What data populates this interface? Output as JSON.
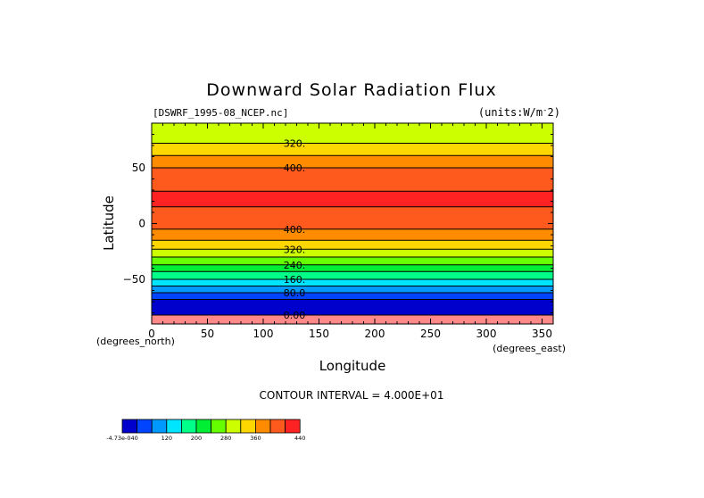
{
  "chart_data": {
    "type": "heatmap",
    "title": "Downward Solar Radiation Flux",
    "dataset_label": "[DSWRF_1995-08_NCEP.nc]",
    "units_label": "(units:W/m^2)",
    "xlabel": "Longitude",
    "ylabel": "Latitude",
    "x_unit_label": "(degrees_east)",
    "y_unit_label": "(degrees_north)",
    "xlim": [
      0,
      360
    ],
    "ylim": [
      -90,
      90
    ],
    "x_ticks": [
      0,
      50,
      100,
      150,
      200,
      250,
      300,
      350
    ],
    "y_ticks": [
      50,
      0,
      -50
    ],
    "y_tick_labels": [
      "50",
      "0",
      "−50"
    ],
    "contour_interval_text": "CONTOUR INTERVAL = 4.000E+01",
    "contour_labels": [
      {
        "text": "320.",
        "lat": 72
      },
      {
        "text": "400.",
        "lat": 50
      },
      {
        "text": "400.",
        "lat": -5
      },
      {
        "text": "320.",
        "lat": -23
      },
      {
        "text": "240.",
        "lat": -37
      },
      {
        "text": "160.",
        "lat": -50
      },
      {
        "text": "80.0",
        "lat": -62
      },
      {
        "text": "0.00",
        "lat": -82
      }
    ],
    "bands": [
      {
        "lat_top": 90,
        "lat_bottom": 72,
        "level_index": 7
      },
      {
        "lat_top": 72,
        "lat_bottom": 61,
        "level_index": 8
      },
      {
        "lat_top": 61,
        "lat_bottom": 50,
        "level_index": 9
      },
      {
        "lat_top": 50,
        "lat_bottom": 29,
        "level_index": 10
      },
      {
        "lat_top": 29,
        "lat_bottom": 15,
        "level_index": 11
      },
      {
        "lat_top": 15,
        "lat_bottom": -5,
        "level_index": 10
      },
      {
        "lat_top": -5,
        "lat_bottom": -15,
        "level_index": 9
      },
      {
        "lat_top": -15,
        "lat_bottom": -23,
        "level_index": 8
      },
      {
        "lat_top": -23,
        "lat_bottom": -30,
        "level_index": 7
      },
      {
        "lat_top": -30,
        "lat_bottom": -37,
        "level_index": 6
      },
      {
        "lat_top": -37,
        "lat_bottom": -43,
        "level_index": 5
      },
      {
        "lat_top": -43,
        "lat_bottom": -50,
        "level_index": 4
      },
      {
        "lat_top": -50,
        "lat_bottom": -56,
        "level_index": 3
      },
      {
        "lat_top": -56,
        "lat_bottom": -62,
        "level_index": 2
      },
      {
        "lat_top": -62,
        "lat_bottom": -68,
        "level_index": 1
      },
      {
        "lat_top": -68,
        "lat_bottom": -82,
        "level_index": 0
      },
      {
        "lat_top": -82,
        "lat_bottom": -90,
        "level_index": 12
      }
    ],
    "colorbar": {
      "colors": [
        "#0000cd",
        "#0044ff",
        "#0099ff",
        "#00e5ff",
        "#00ff88",
        "#00ee33",
        "#66ff00",
        "#ccff00",
        "#ffd700",
        "#ff8c00",
        "#ff5a1e",
        "#ff2222",
        "#ff8888",
        "#660099"
      ],
      "boxes": [
        "#0000cd",
        "#0044ff",
        "#0099ff",
        "#00e5ff",
        "#00ff88",
        "#00ee33",
        "#66ff00",
        "#ccff00",
        "#ffd700",
        "#ff8c00",
        "#ff5a1e",
        "#ff2222"
      ],
      "tick_labels": [
        "-4.73e-040",
        "120",
        "200",
        "280",
        "360",
        "440"
      ],
      "tick_label_box_index": [
        0,
        3,
        5,
        7,
        9,
        12
      ]
    }
  }
}
